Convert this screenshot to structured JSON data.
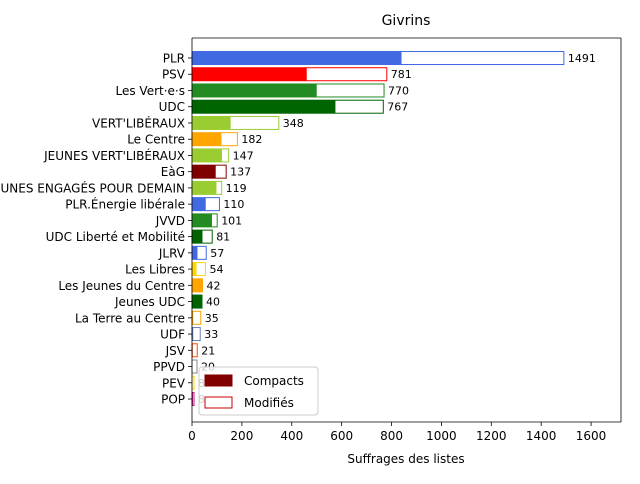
{
  "chart_data": {
    "type": "bar",
    "orientation": "horizontal",
    "title": "Givrins",
    "xlabel": "Suffrages des listes",
    "ylabel": "",
    "xlim": [
      0,
      1720
    ],
    "xticks": [
      0,
      200,
      400,
      600,
      800,
      1000,
      1200,
      1400,
      1600
    ],
    "grid": false,
    "legend_position": "lower-left",
    "legend": [
      {
        "name": "Compacts",
        "style": "filled",
        "color": "#800000"
      },
      {
        "name": "Modifiés",
        "style": "outline",
        "color": "#cc0000"
      }
    ],
    "categories": [
      {
        "label": "PLR",
        "total": 1491,
        "compact": 840,
        "color": "#4169E1"
      },
      {
        "label": "PSV",
        "total": 781,
        "compact": 460,
        "color": "#FF0000"
      },
      {
        "label": "Les Vert·e·s",
        "total": 770,
        "compact": 500,
        "color": "#228B22"
      },
      {
        "label": "UDC",
        "total": 767,
        "compact": 575,
        "color": "#006400"
      },
      {
        "label": "VERT'LIBÉRAUX",
        "total": 348,
        "compact": 155,
        "color": "#9ACD32"
      },
      {
        "label": "Le Centre",
        "total": 182,
        "compact": 118,
        "color": "#FFA500"
      },
      {
        "label": "JEUNES VERT'LIBÉRAUX",
        "total": 147,
        "compact": 120,
        "color": "#9ACD32"
      },
      {
        "label": "EàG",
        "total": 137,
        "compact": 95,
        "color": "#800000"
      },
      {
        "label": "JEUNES ENGAGÉS POUR DEMAIN",
        "total": 119,
        "compact": 98,
        "color": "#9ACD32"
      },
      {
        "label": "PLR.Énergie libérale",
        "total": 110,
        "compact": 55,
        "color": "#4169E1"
      },
      {
        "label": "JVVD",
        "total": 101,
        "compact": 80,
        "color": "#228B22"
      },
      {
        "label": "UDC Liberté et Mobilité",
        "total": 81,
        "compact": 42,
        "color": "#006400"
      },
      {
        "label": "JLRV",
        "total": 57,
        "compact": 22,
        "color": "#4169E1"
      },
      {
        "label": "Les Libres",
        "total": 54,
        "compact": 18,
        "color": "#FFD700"
      },
      {
        "label": "Les Jeunes du Centre",
        "total": 42,
        "compact": 42,
        "color": "#FFA500"
      },
      {
        "label": "Jeunes UDC",
        "total": 40,
        "compact": 40,
        "color": "#006400"
      },
      {
        "label": "La Terre au Centre",
        "total": 35,
        "compact": 5,
        "color": "#FFA500"
      },
      {
        "label": "UDF",
        "total": 33,
        "compact": 5,
        "color": "#6A7FB5"
      },
      {
        "label": "JSV",
        "total": 21,
        "compact": 3,
        "color": "#FF4500"
      },
      {
        "label": "PPVD",
        "total": 20,
        "compact": 0,
        "color": "#888888"
      },
      {
        "label": "PEV",
        "total": 8,
        "compact": 2,
        "color": "#FFD700"
      },
      {
        "label": "POP",
        "total": 8,
        "compact": 4,
        "color": "#C71585"
      }
    ]
  }
}
